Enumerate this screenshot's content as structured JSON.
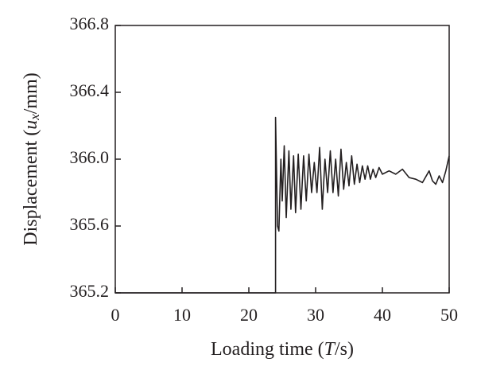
{
  "chart_data": {
    "type": "line",
    "xlabel": [
      "Loading time (",
      "T",
      "/s)"
    ],
    "ylabel": [
      "Displacement (",
      "u",
      "x",
      "/mm)"
    ],
    "xlim": [
      0,
      50
    ],
    "xticks": [
      0,
      10,
      20,
      30,
      40,
      50
    ],
    "ylim": [
      365.2,
      366.8
    ],
    "yticks": [
      365.2,
      365.6,
      {
        "value": 366.0,
        "label": "366.0"
      },
      366.4,
      366.8
    ],
    "grid": false,
    "series": [
      {
        "color": "#231f20",
        "x": [
          0,
          24,
          24.0,
          24.3,
          24.5,
          24.8,
          25.0,
          25.3,
          25.6,
          26.0,
          26.3,
          26.7,
          27.0,
          27.4,
          27.8,
          28.2,
          28.6,
          29.0,
          29.4,
          29.8,
          30.2,
          30.6,
          31.0,
          31.4,
          31.8,
          32.2,
          32.6,
          33.0,
          33.4,
          33.8,
          34.2,
          34.6,
          35.0,
          35.4,
          35.8,
          36.2,
          36.6,
          37.0,
          37.4,
          37.8,
          38.2,
          38.6,
          39.0,
          39.5,
          40,
          41,
          42,
          43,
          44,
          45,
          46,
          47,
          47.5,
          48,
          48.5,
          49,
          49.5,
          50
        ],
        "values": [
          365.2,
          365.2,
          366.25,
          365.6,
          365.57,
          366.0,
          365.75,
          366.08,
          365.65,
          366.05,
          365.7,
          366.02,
          365.68,
          366.03,
          365.7,
          366.02,
          365.75,
          366.03,
          365.8,
          365.98,
          365.8,
          366.07,
          365.7,
          366.0,
          365.8,
          366.05,
          365.8,
          366.0,
          365.78,
          366.06,
          365.82,
          365.98,
          365.84,
          366.02,
          365.85,
          365.97,
          365.86,
          365.96,
          365.88,
          365.96,
          365.88,
          365.94,
          365.89,
          365.95,
          365.91,
          365.93,
          365.91,
          365.94,
          365.89,
          365.88,
          365.86,
          365.93,
          365.87,
          365.85,
          365.9,
          365.86,
          365.93,
          366.02
        ]
      }
    ]
  }
}
